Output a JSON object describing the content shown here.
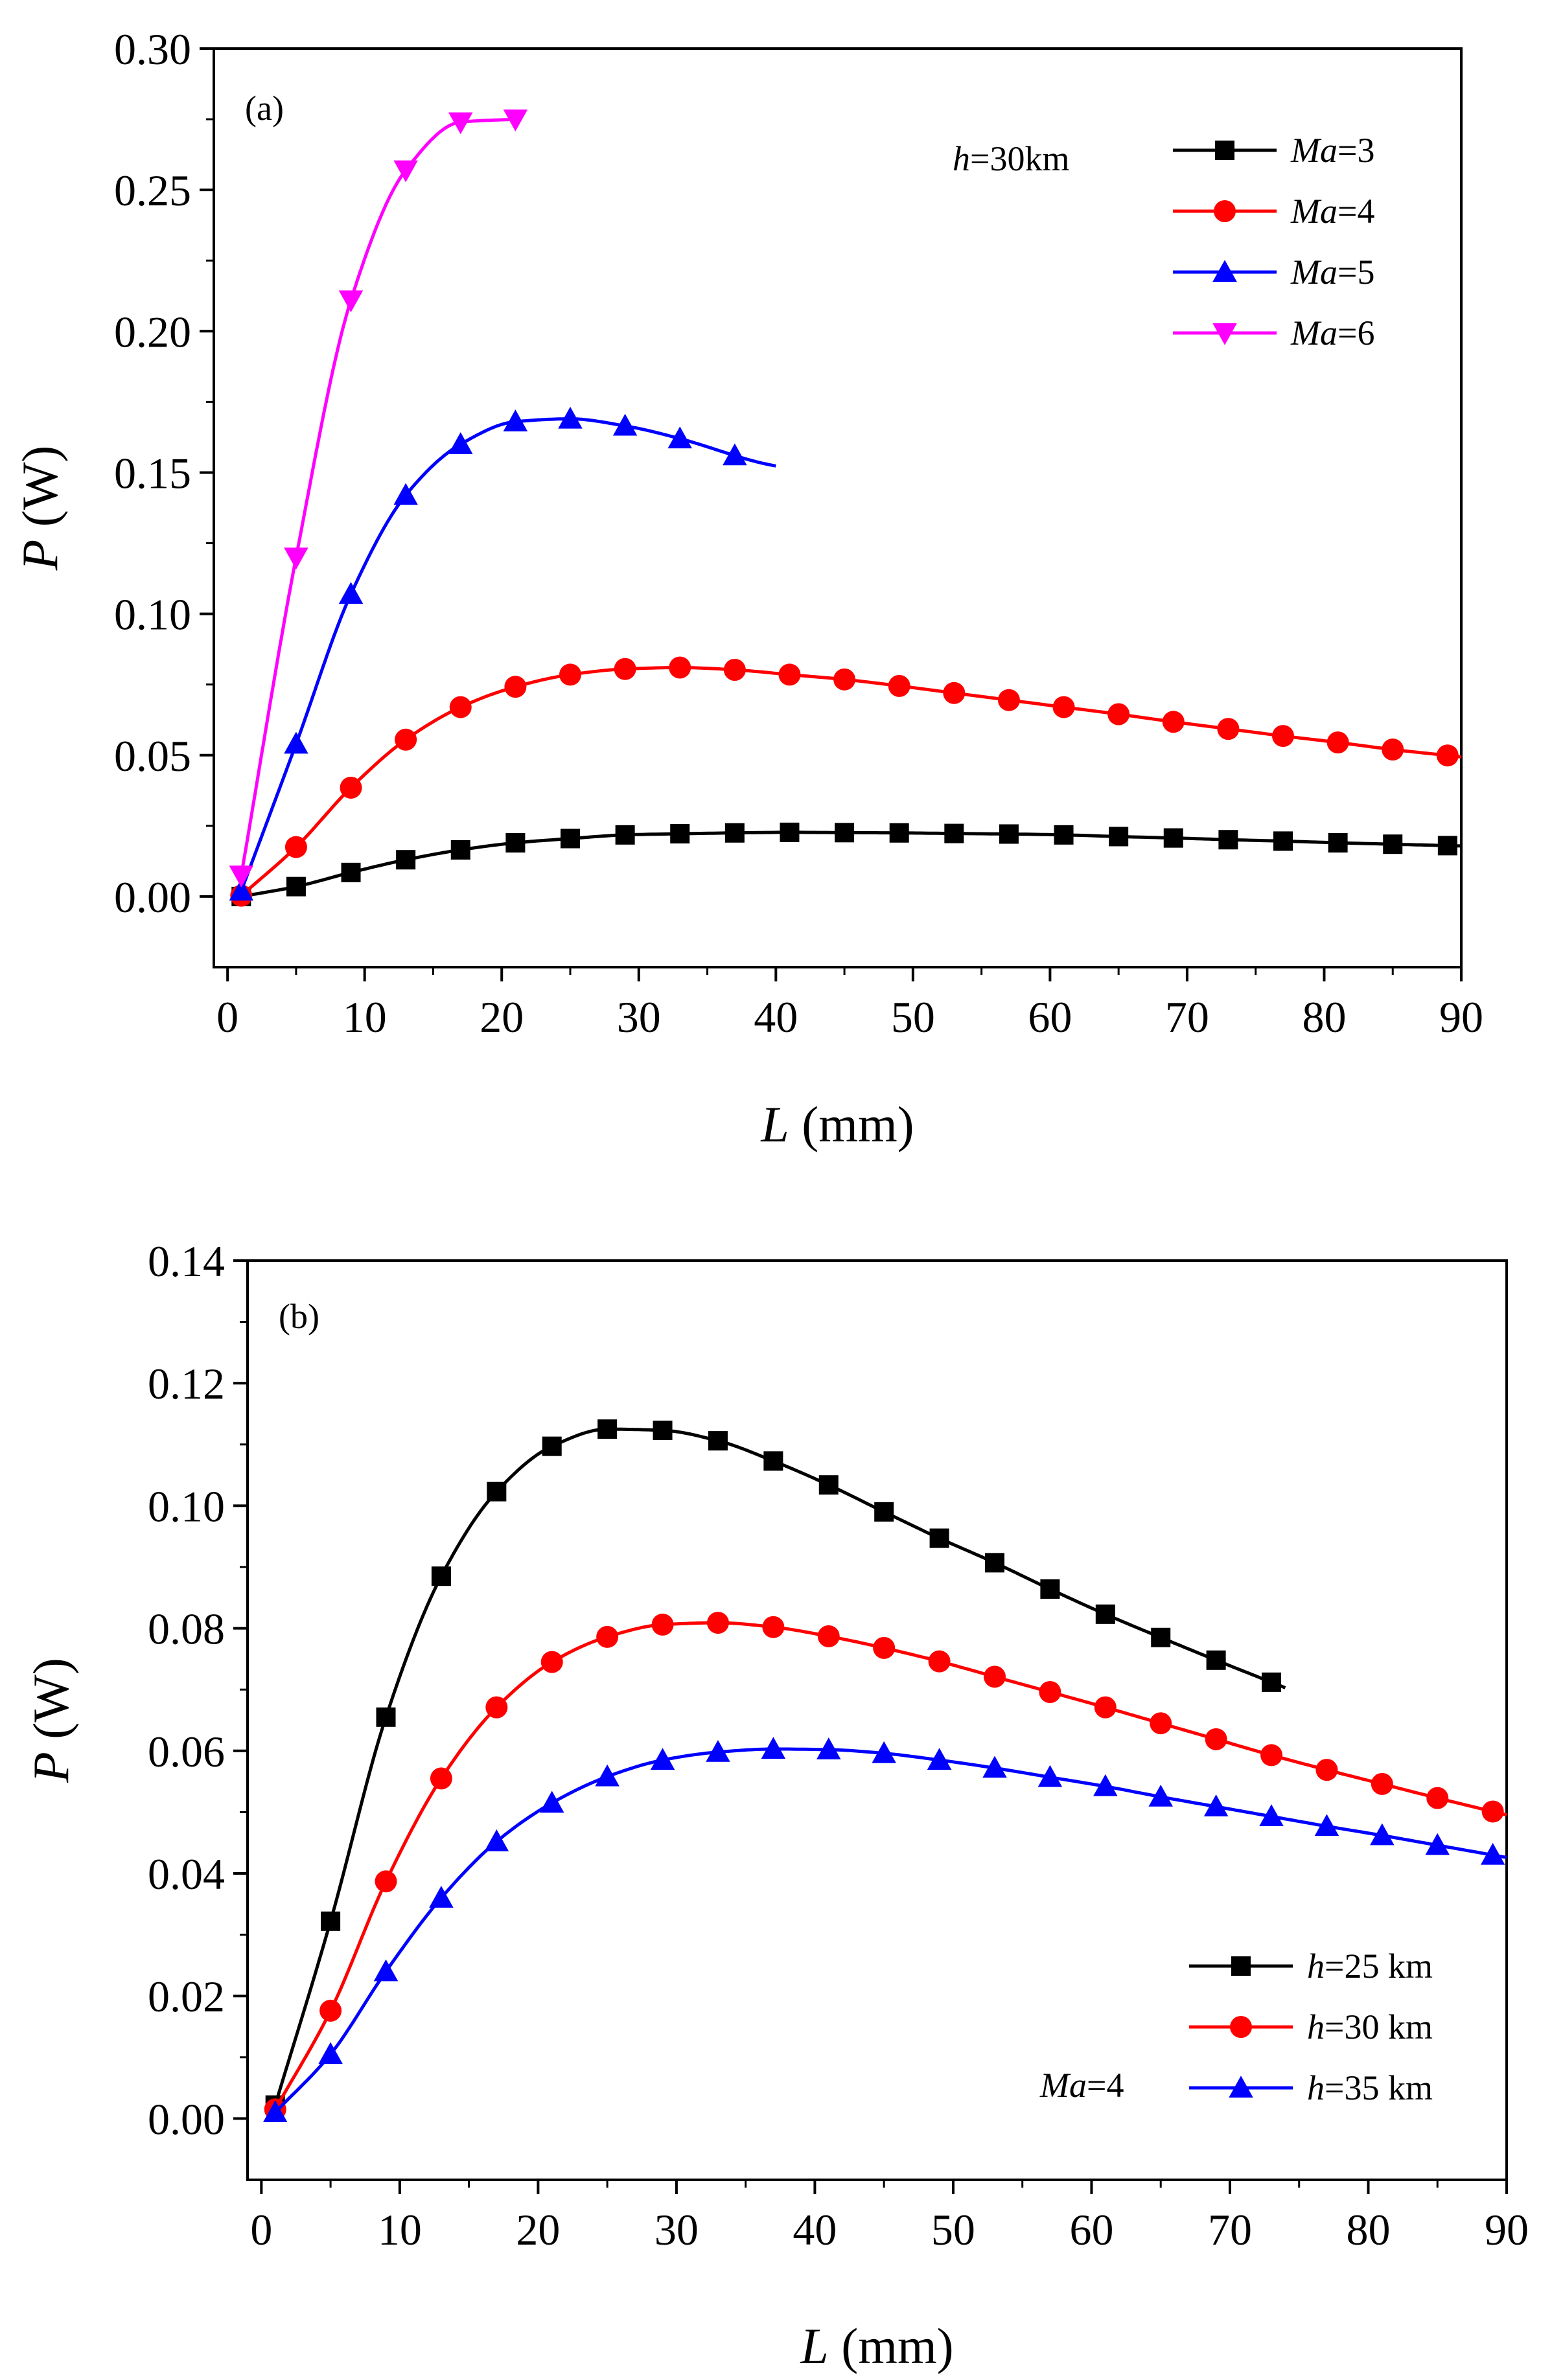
{
  "chart_data": [
    {
      "type": "line",
      "panel_label": "(a)",
      "annotation": {
        "var": "h",
        "rest": "=30km"
      },
      "xlabel": {
        "var": "L",
        "unit": " (mm)"
      },
      "ylabel": {
        "var": "P",
        "unit": " (W)"
      },
      "xlim": [
        -1,
        90
      ],
      "ylim": [
        -0.025,
        0.3
      ],
      "xticks": [
        0,
        10,
        20,
        30,
        40,
        50,
        60,
        70,
        80,
        90
      ],
      "xtick_labels": [
        "0",
        "10",
        "20",
        "30",
        "40",
        "50",
        "60",
        "70",
        "80",
        "90"
      ],
      "yticks": [
        0.0,
        0.05,
        0.1,
        0.15,
        0.2,
        0.25,
        0.3
      ],
      "ytick_labels": [
        "0.00",
        "0.05",
        "0.10",
        "0.15",
        "0.20",
        "0.25",
        "0.30"
      ],
      "legend_position": "top-right",
      "series": [
        {
          "name": "Ma=3",
          "label_var": "Ma",
          "label_rest": "=3",
          "color": "#000000",
          "marker": "square",
          "x": [
            1,
            5,
            9,
            13,
            17,
            21,
            25,
            29,
            33,
            37,
            41,
            45,
            49,
            53,
            57,
            61,
            65,
            69,
            73,
            77,
            81,
            85,
            89
          ],
          "y": [
            0.0,
            0.0035,
            0.0085,
            0.013,
            0.0165,
            0.019,
            0.0205,
            0.0218,
            0.0222,
            0.0225,
            0.0227,
            0.0226,
            0.0225,
            0.0223,
            0.0221,
            0.0218,
            0.0212,
            0.0207,
            0.0201,
            0.0196,
            0.019,
            0.0185,
            0.018
          ],
          "curve_end": 90
        },
        {
          "name": "Ma=4",
          "label_var": "Ma",
          "label_rest": "=4",
          "color": "#ff0000",
          "marker": "circle",
          "x": [
            1,
            5,
            9,
            13,
            17,
            21,
            25,
            29,
            33,
            37,
            41,
            45,
            49,
            53,
            57,
            61,
            65,
            69,
            73,
            77,
            81,
            85,
            89
          ],
          "y": [
            0.0003,
            0.0175,
            0.0385,
            0.0555,
            0.067,
            0.0742,
            0.0785,
            0.0805,
            0.081,
            0.0802,
            0.0785,
            0.0768,
            0.0745,
            0.072,
            0.0695,
            0.067,
            0.0645,
            0.0618,
            0.0593,
            0.0568,
            0.0545,
            0.052,
            0.0499
          ],
          "curve_end": 90
        },
        {
          "name": "Ma=5",
          "label_var": "Ma",
          "label_rest": "=5",
          "color": "#0000ff",
          "marker": "triangle-up",
          "x": [
            1,
            5,
            9,
            13,
            17,
            21,
            25,
            29,
            33,
            37
          ],
          "y": [
            0.002,
            0.054,
            0.107,
            0.142,
            0.16,
            0.168,
            0.169,
            0.1665,
            0.162,
            0.156
          ],
          "curve_end": 40
        },
        {
          "name": "Ma=6",
          "label_var": "Ma",
          "label_rest": "=6",
          "color": "#ff00ff",
          "marker": "triangle-down",
          "x": [
            1,
            5,
            9,
            13,
            17,
            21
          ],
          "y": [
            0.0075,
            0.12,
            0.211,
            0.257,
            0.274,
            0.275
          ],
          "curve_end": 21
        }
      ]
    },
    {
      "type": "line",
      "panel_label": "(b)",
      "annotation": {
        "var": "Ma",
        "rest": "=4"
      },
      "xlabel": {
        "var": "L",
        "unit": " (mm)"
      },
      "ylabel": {
        "var": "P",
        "unit": " (W)"
      },
      "xlim": [
        -1,
        90
      ],
      "ylim": [
        -0.01,
        0.14
      ],
      "xticks": [
        0,
        10,
        20,
        30,
        40,
        50,
        60,
        70,
        80,
        90
      ],
      "xtick_labels": [
        "0",
        "10",
        "20",
        "30",
        "40",
        "50",
        "60",
        "70",
        "80",
        "90"
      ],
      "yticks": [
        0.0,
        0.02,
        0.04,
        0.06,
        0.08,
        0.1,
        0.12,
        0.14
      ],
      "ytick_labels": [
        "0.00",
        "0.02",
        "0.04",
        "0.06",
        "0.08",
        "0.10",
        "0.12",
        "0.14"
      ],
      "legend_position": "bottom-right",
      "series": [
        {
          "name": "h=25 km",
          "label_var": "h",
          "label_rest": "=25 km",
          "color": "#000000",
          "marker": "square",
          "x": [
            1,
            5,
            9,
            13,
            17,
            21,
            25,
            29,
            33,
            37,
            41,
            45,
            49,
            53,
            57,
            61,
            65,
            69,
            73
          ],
          "y": [
            0.0022,
            0.0322,
            0.0655,
            0.0885,
            0.1023,
            0.1097,
            0.1125,
            0.1123,
            0.1106,
            0.1073,
            0.1034,
            0.099,
            0.0947,
            0.0907,
            0.0864,
            0.0823,
            0.0785,
            0.0748,
            0.0712
          ],
          "curve_end": 74
        },
        {
          "name": "h=30 km",
          "label_var": "h",
          "label_rest": "=30 km",
          "color": "#ff0000",
          "marker": "circle",
          "x": [
            1,
            5,
            9,
            13,
            17,
            21,
            25,
            29,
            33,
            37,
            41,
            45,
            49,
            53,
            57,
            61,
            65,
            69,
            73,
            77,
            81,
            85,
            89
          ],
          "y": [
            0.0015,
            0.0176,
            0.0387,
            0.0555,
            0.0671,
            0.0745,
            0.0786,
            0.0806,
            0.0809,
            0.0802,
            0.0787,
            0.0768,
            0.0746,
            0.0721,
            0.0696,
            0.0671,
            0.0645,
            0.0619,
            0.0593,
            0.0569,
            0.0546,
            0.0523,
            0.0501
          ],
          "curve_end": 90
        },
        {
          "name": "h=35 km",
          "label_var": "h",
          "label_rest": "=35 km",
          "color": "#0000ff",
          "marker": "triangle-up",
          "x": [
            1,
            5,
            9,
            13,
            17,
            21,
            25,
            29,
            33,
            37,
            41,
            45,
            49,
            53,
            57,
            61,
            65,
            69,
            73,
            77,
            81,
            85,
            89
          ],
          "y": [
            0.001,
            0.0105,
            0.024,
            0.036,
            0.0452,
            0.0515,
            0.0558,
            0.0585,
            0.0598,
            0.0603,
            0.0602,
            0.0596,
            0.0585,
            0.0572,
            0.0557,
            0.0542,
            0.0525,
            0.0509,
            0.0493,
            0.0477,
            0.0462,
            0.0446,
            0.043
          ],
          "curve_end": 90
        }
      ]
    }
  ]
}
